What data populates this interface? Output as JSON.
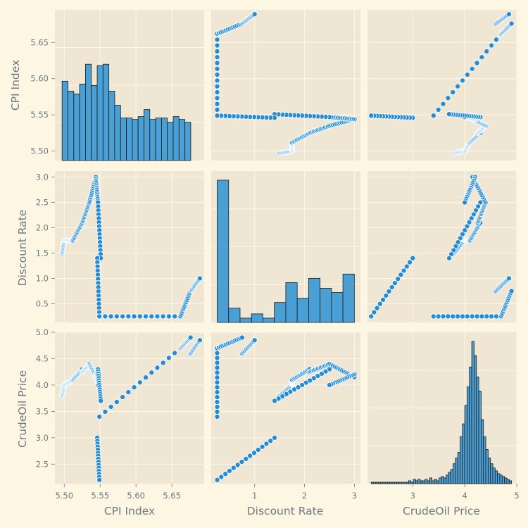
{
  "chart_data": {
    "type": "scatter",
    "kind": "pairplot",
    "variables": [
      "CPI Index",
      "Discount Rate",
      "CrudeOil Price"
    ],
    "axis_labels": {
      "x": [
        "CPI Index",
        "Discount Rate",
        "CrudeOil Price"
      ],
      "y": [
        "CPI Index",
        "Discount Rate",
        "CrudeOil Price"
      ]
    },
    "ranges": {
      "CPI Index": [
        5.487,
        5.695
      ],
      "Discount Rate": [
        0.13,
        3.12
      ],
      "CrudeOil Price": [
        2.13,
        5.0
      ]
    },
    "ticks": {
      "CPI Index": {
        "x": {
          "values": [
            5.5,
            5.55,
            5.6,
            5.65
          ],
          "labels": [
            "5.50",
            "5.55",
            "5.60",
            "5.65"
          ]
        },
        "y": {
          "values": [
            5.5,
            5.55,
            5.6,
            5.65
          ],
          "labels": [
            "5.50",
            "5.55",
            "5.60",
            "5.65"
          ]
        }
      },
      "Discount Rate": {
        "x": {
          "values": [
            1,
            2,
            3
          ],
          "labels": [
            "1",
            "2",
            "3"
          ]
        },
        "y": {
          "values": [
            0.5,
            1.0,
            1.5,
            2.0,
            2.5,
            3.0
          ],
          "labels": [
            "0.5",
            "1.0",
            "1.5",
            "2.0",
            "2.5",
            "3.0"
          ]
        }
      },
      "CrudeOil Price": {
        "x": {
          "values": [
            3,
            4,
            5
          ],
          "labels": [
            "3",
            "4",
            "5"
          ]
        },
        "y": {
          "values": [
            2.5,
            3.0,
            3.5,
            4.0,
            4.5,
            5.0
          ],
          "labels": [
            "2.5",
            "3.0",
            "3.5",
            "4.0",
            "4.5",
            "5.0"
          ]
        }
      }
    },
    "histograms": {
      "CPI Index": {
        "bin_start": 5.497,
        "bin_width": 0.00815,
        "relative_heights": [
          0.56,
          0.49,
          0.47,
          0.54,
          0.68,
          0.53,
          0.67,
          0.68,
          0.49,
          0.39,
          0.3,
          0.3,
          0.29,
          0.31,
          0.36,
          0.29,
          0.3,
          0.3,
          0.27,
          0.31,
          0.29,
          0.27
        ]
      },
      "Discount Rate": {
        "bin_start": 0.25,
        "bin_width": 0.229,
        "relative_heights": [
          1.0,
          0.1,
          0.03,
          0.06,
          0.03,
          0.14,
          0.28,
          0.17,
          0.31,
          0.24,
          0.21,
          0.34
        ]
      },
      "CrudeOil Price": {
        "bin_start": 2.2,
        "bin_width": 0.045,
        "relative_heights": [
          0.01,
          0.01,
          0.01,
          0.01,
          0.01,
          0.01,
          0.01,
          0.01,
          0.01,
          0.01,
          0.01,
          0.01,
          0.01,
          0.01,
          0.01,
          0.01,
          0.02,
          0.01,
          0.03,
          0.02,
          0.03,
          0.02,
          0.02,
          0.03,
          0.02,
          0.04,
          0.02,
          0.03,
          0.02,
          0.04,
          0.05,
          0.04,
          0.06,
          0.08,
          0.1,
          0.14,
          0.18,
          0.22,
          0.33,
          0.42,
          0.55,
          0.68,
          0.82,
          1.0,
          0.9,
          0.75,
          0.65,
          0.45,
          0.33,
          0.24,
          0.18,
          0.14,
          0.11,
          0.09,
          0.07,
          0.06,
          0.05,
          0.04,
          0.03,
          0.02
        ]
      }
    },
    "series_segments": [
      {
        "cpi": [
          5.497,
          5.5
        ],
        "rate": [
          1.5,
          1.75
        ],
        "oil": [
          3.8,
          4.0
        ]
      },
      {
        "cpi": [
          5.5,
          5.512
        ],
        "rate": [
          1.75,
          1.75
        ],
        "oil": [
          4.0,
          4.1
        ]
      },
      {
        "cpi": [
          5.512,
          5.525
        ],
        "rate": [
          1.75,
          2.1
        ],
        "oil": [
          4.1,
          4.3
        ]
      },
      {
        "cpi": [
          5.525,
          5.535
        ],
        "rate": [
          2.1,
          2.5
        ],
        "oil": [
          4.25,
          4.4
        ]
      },
      {
        "cpi": [
          5.535,
          5.544
        ],
        "rate": [
          2.5,
          3.0
        ],
        "oil": [
          4.4,
          4.15
        ]
      },
      {
        "cpi": [
          5.544,
          5.547
        ],
        "rate": [
          3.0,
          2.5
        ],
        "oil": [
          4.2,
          4.0
        ]
      },
      {
        "cpi": [
          5.547,
          5.551
        ],
        "rate": [
          2.5,
          1.4
        ],
        "oil": [
          4.3,
          3.7
        ]
      },
      {
        "cpi": [
          5.546,
          5.549
        ],
        "rate": [
          1.4,
          0.25
        ],
        "oil": [
          3.0,
          2.2
        ]
      },
      {
        "cpi": [
          5.549,
          5.662
        ],
        "rate": [
          0.25,
          0.25
        ],
        "oil": [
          3.4,
          4.7
        ]
      },
      {
        "cpi": [
          5.662,
          5.676
        ],
        "rate": [
          0.25,
          0.75
        ],
        "oil": [
          4.7,
          4.9
        ]
      },
      {
        "cpi": [
          5.676,
          5.689
        ],
        "rate": [
          0.75,
          1.0
        ],
        "oil": [
          4.6,
          4.85
        ]
      }
    ]
  }
}
